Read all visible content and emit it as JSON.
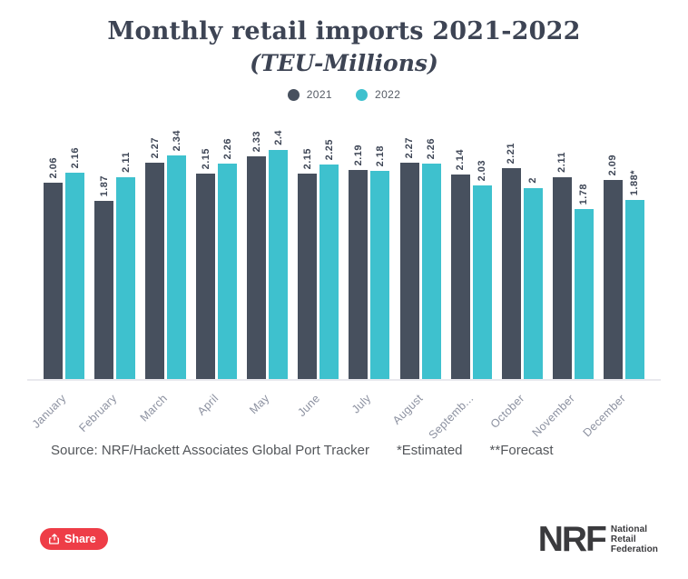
{
  "header": {
    "title": "Monthly retail imports 2021-2022",
    "subtitle": "(TEU-Millions)"
  },
  "legend": {
    "items": [
      {
        "label": "2021",
        "color": "#47505E"
      },
      {
        "label": "2022",
        "color": "#3EC1CE"
      }
    ]
  },
  "chart_data": {
    "type": "bar",
    "title": "Monthly retail imports 2021-2022",
    "subtitle": "(TEU-Millions)",
    "unit": "TEU-Millions",
    "categories": [
      "January",
      "February",
      "March",
      "April",
      "May",
      "June",
      "July",
      "August",
      "September",
      "October",
      "November",
      "December"
    ],
    "category_display": [
      "January",
      "February",
      "March",
      "April",
      "May",
      "June",
      "July",
      "August",
      "Septemb...",
      "October",
      "November",
      "December"
    ],
    "series": [
      {
        "name": "2021",
        "color": "#47505E",
        "values": [
          2.06,
          1.87,
          2.27,
          2.15,
          2.33,
          2.15,
          2.19,
          2.27,
          2.14,
          2.21,
          2.11,
          2.09
        ],
        "labels": [
          "2.06",
          "1.87",
          "2.27",
          "2.15",
          "2.33",
          "2.15",
          "2.19",
          "2.27",
          "2.14",
          "2.21",
          "2.11",
          "2.09"
        ]
      },
      {
        "name": "2022",
        "color": "#3EC1CE",
        "values": [
          2.16,
          2.11,
          2.34,
          2.26,
          2.4,
          2.25,
          2.18,
          2.26,
          2.03,
          2.0,
          1.78,
          1.88
        ],
        "labels": [
          "2.16",
          "2.11",
          "2.34",
          "2.26",
          "2.4",
          "2.25",
          "2.18",
          "2.26",
          "2.03",
          "2",
          "1.78",
          "1.88*"
        ]
      }
    ],
    "ylim": [
      0,
      2.4
    ],
    "grid": false,
    "legend_position": "top",
    "value_labels": "rotated-vertical",
    "x_labels_rotation": -45
  },
  "footnotes": {
    "source": "Source: NRF/Hackett Associates Global Port Tracker",
    "estimated": "*Estimated",
    "forecast": "**Forecast"
  },
  "footer": {
    "share_label": "Share",
    "share_color": "#EE3D47",
    "logo_text": "NRF",
    "logo_tagline": [
      "National",
      "Retail",
      "Federation"
    ]
  }
}
